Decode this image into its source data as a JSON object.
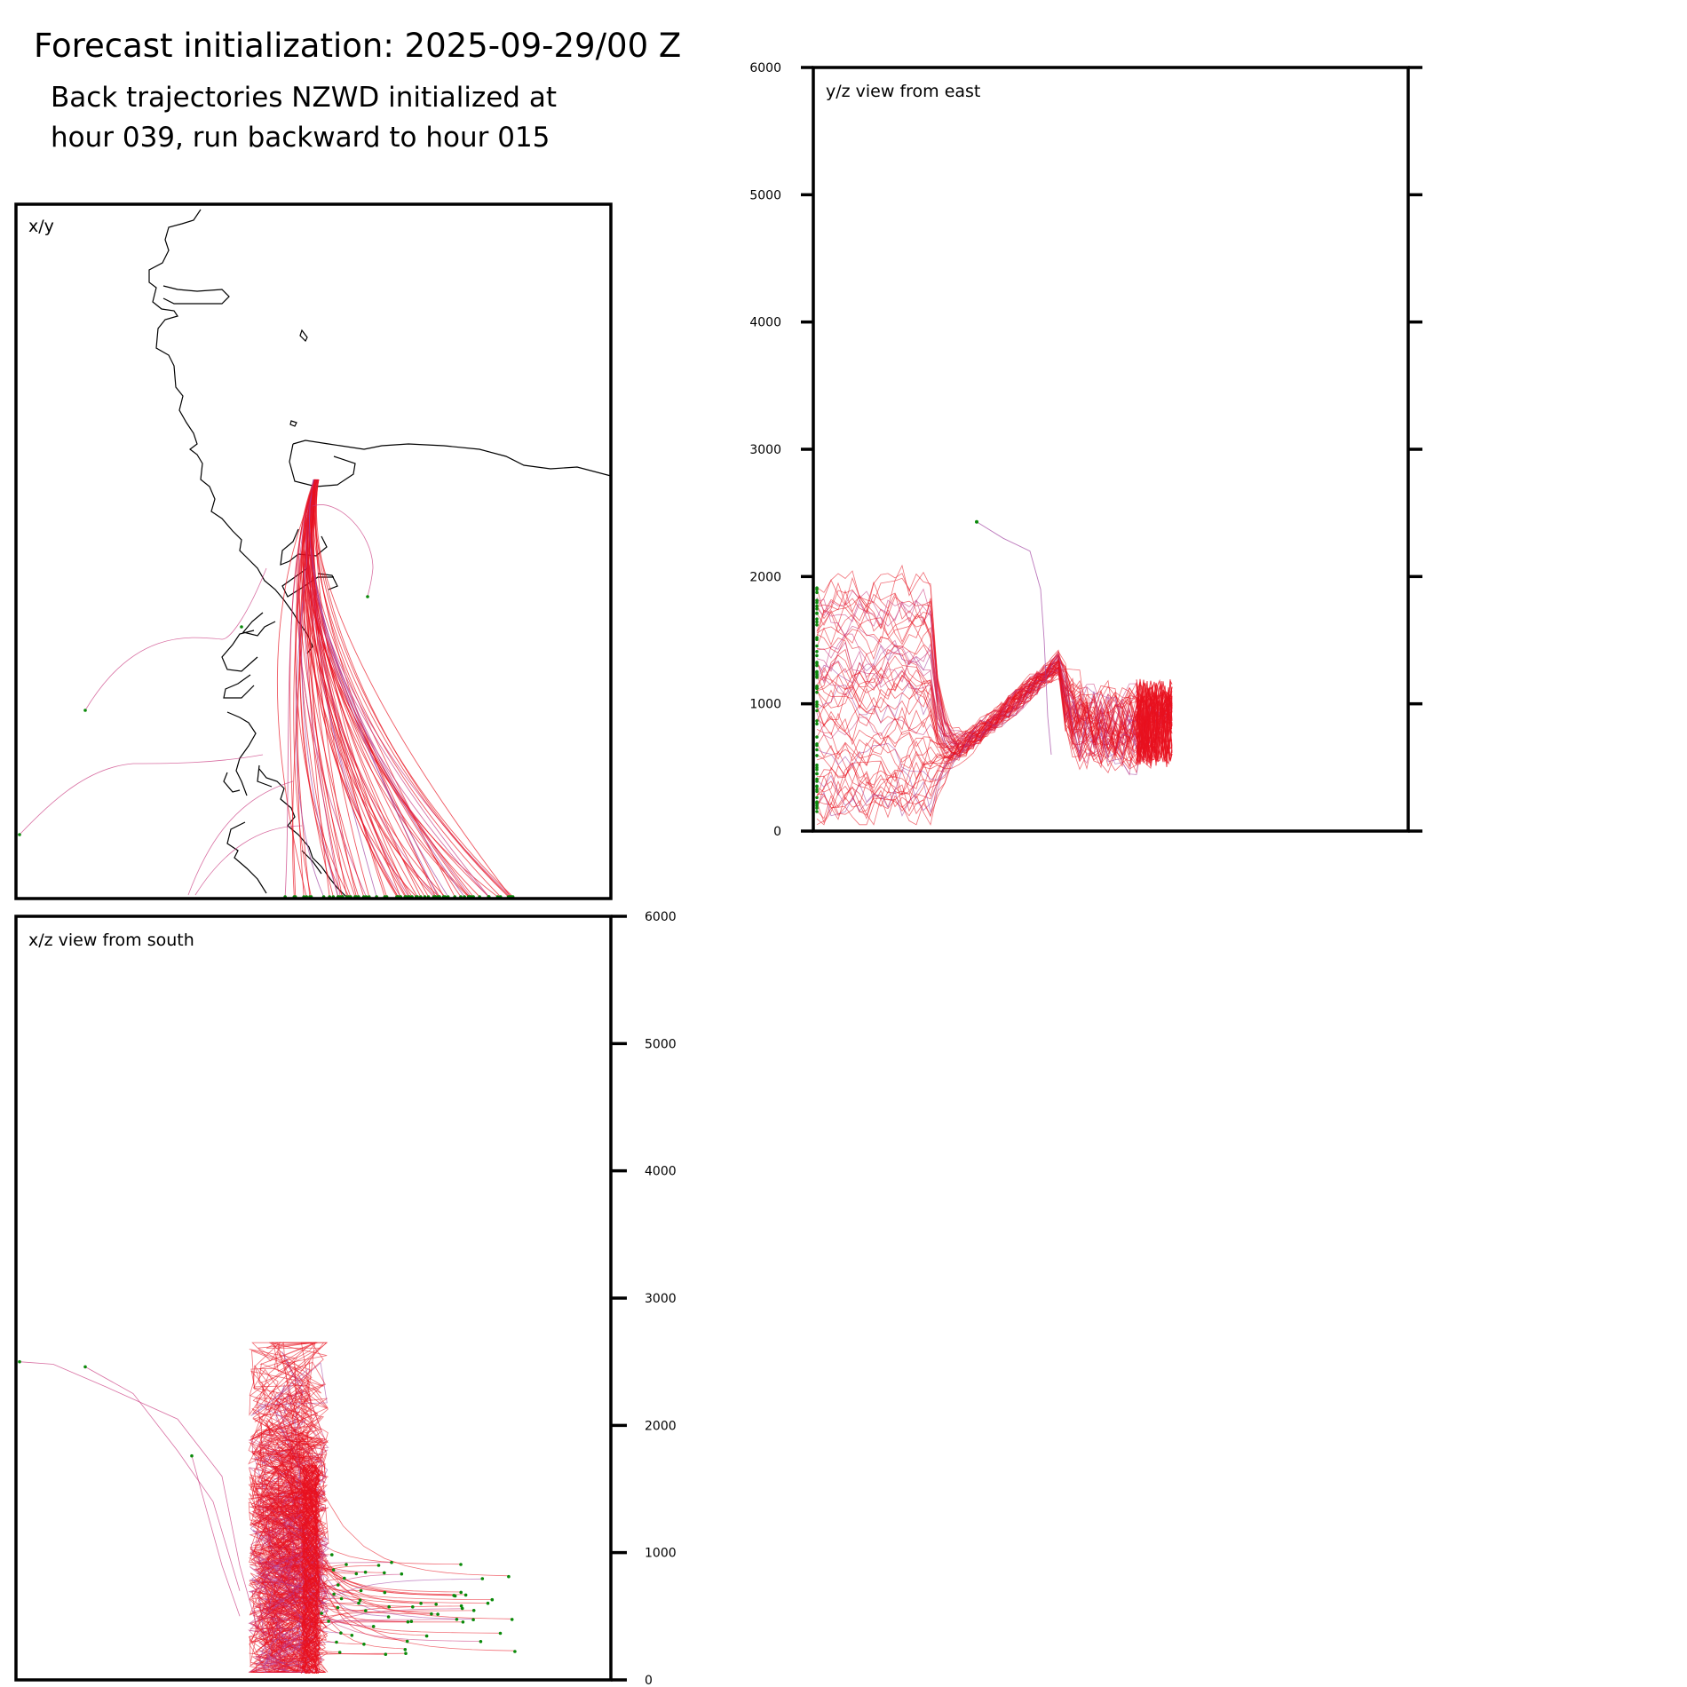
{
  "title": "Forecast initialization: 2025-09-29/00 Z",
  "subtitle": [
    "Back trajectories NZWD initialized at",
    "hour 039, run backward to hour 015"
  ],
  "colors": {
    "trajectory_main": "#e8101e",
    "trajectory_alt": "#c8327a",
    "trajectory_purple": "#a040a0",
    "endpoint": "#0a8a0a",
    "coastline": "#000000",
    "axis": "#000000"
  },
  "chart_data": [
    {
      "type": "line",
      "panel": "xy",
      "title": "x/y",
      "description": "Map view of trajectories around NZWD with coastline",
      "grid": false,
      "legend": "none"
    },
    {
      "type": "line",
      "panel": "yz",
      "title": "y/z view from east",
      "ylim": [
        0,
        6000
      ],
      "yticks": [
        "0",
        "1000",
        "2000",
        "3000",
        "4000",
        "5000",
        "6000"
      ],
      "ytick_side": "left",
      "grid": false,
      "legend": "none"
    },
    {
      "type": "line",
      "panel": "xz",
      "title": "x/z view from south",
      "ylim": [
        0,
        6000
      ],
      "yticks": [
        "0",
        "1000",
        "2000",
        "3000",
        "4000",
        "5000",
        "6000"
      ],
      "ytick_side": "right",
      "grid": false,
      "legend": "none"
    }
  ]
}
